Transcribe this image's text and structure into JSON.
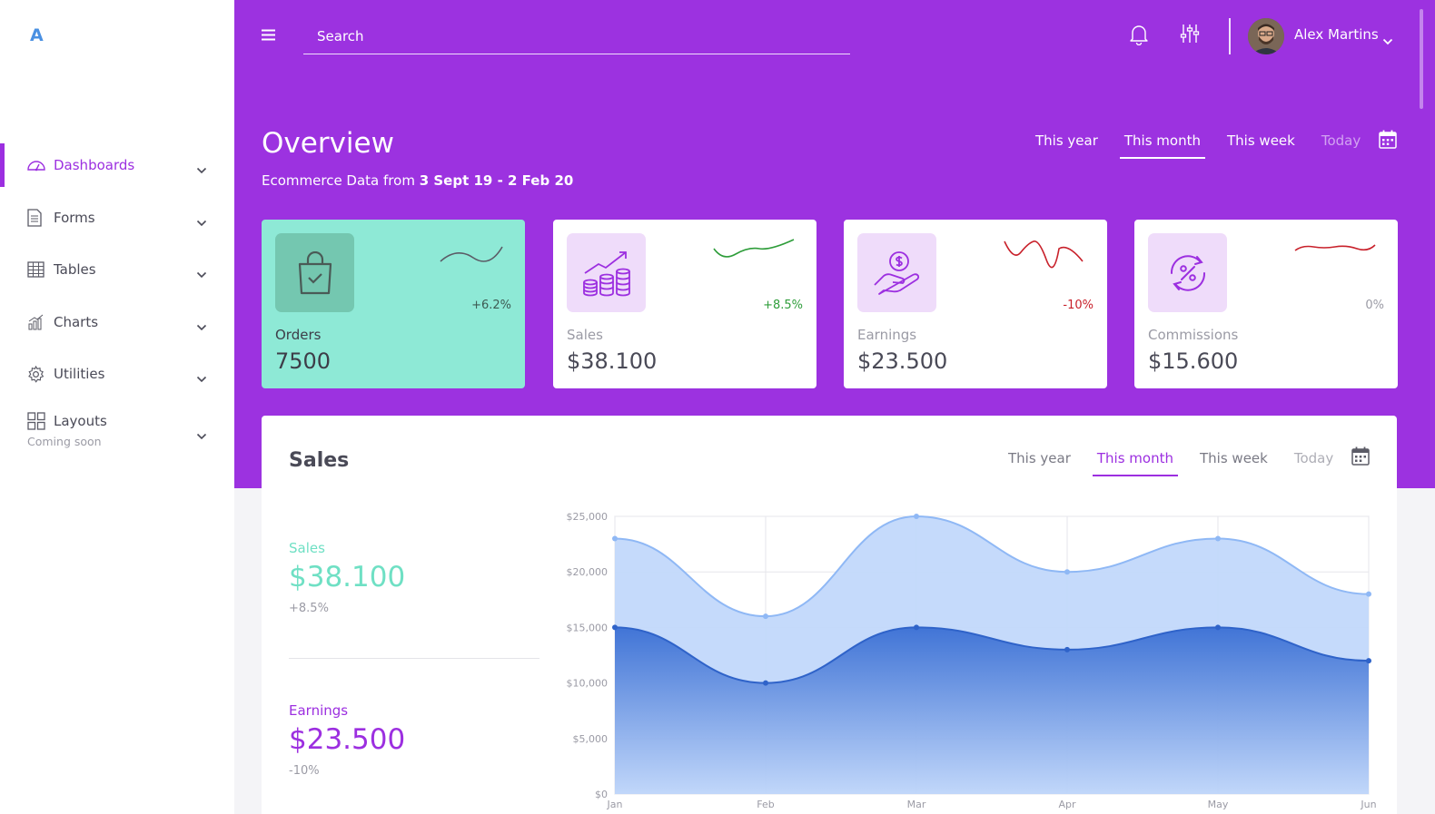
{
  "app": {
    "logo": "A"
  },
  "sidebar": {
    "items": [
      {
        "label": "Dashboards",
        "icon": "gauge-icon",
        "active": true
      },
      {
        "label": "Forms",
        "icon": "document-icon"
      },
      {
        "label": "Tables",
        "icon": "table-icon"
      },
      {
        "label": "Charts",
        "icon": "bar-chart-icon"
      },
      {
        "label": "Utilities",
        "icon": "gear-icon"
      },
      {
        "label": "Layouts",
        "icon": "grid-icon",
        "sub": "Coming soon"
      }
    ]
  },
  "topbar": {
    "search_placeholder": "Search",
    "user": {
      "name": "Alex Martins"
    }
  },
  "overview": {
    "title": "Overview",
    "subtitle_prefix": "Ecommerce Data from ",
    "subtitle_range": "3 Sept 19 - 2 Feb 20",
    "tabs": [
      {
        "label": "This year"
      },
      {
        "label": "This month",
        "active": true
      },
      {
        "label": "This week"
      },
      {
        "label": "Today"
      }
    ]
  },
  "cards": [
    {
      "label": "Orders",
      "value": "7500",
      "change": "+6.2%",
      "icon": "shopping-bag-icon",
      "change_color": "#3d5a52",
      "spark_color": "#5b5b66"
    },
    {
      "label": "Sales",
      "value": "$38.100",
      "change": "+8.5%",
      "icon": "coins-growth-icon",
      "change_color": "#2e9d3a",
      "spark_color": "#2e9d3a"
    },
    {
      "label": "Earnings",
      "value": "$23.500",
      "change": "-10%",
      "icon": "hand-coin-icon",
      "change_color": "#c8202a",
      "spark_color": "#c8202a"
    },
    {
      "label": "Commissions",
      "value": "$15.600",
      "change": "0%",
      "icon": "percent-cycle-icon",
      "change_color": "#9b9ba5",
      "spark_color": "#c8202a"
    }
  ],
  "sales_panel": {
    "title": "Sales",
    "tabs": [
      {
        "label": "This year"
      },
      {
        "label": "This month",
        "active": true
      },
      {
        "label": "This week"
      },
      {
        "label": "Today"
      }
    ],
    "kpis": [
      {
        "label": "Sales",
        "value": "$38.100",
        "change": "+8.5%",
        "color": "#6fe0c4"
      },
      {
        "label": "Earnings",
        "value": "$23.500",
        "change": "-10%",
        "color": "#9c2fe0"
      }
    ]
  },
  "colors": {
    "brand": "#9c32e0",
    "accent": "#9c2fe0",
    "orders_card": "#8ee9d6",
    "series_light": "#8fb8f5",
    "series_dark": "#2f63c9"
  },
  "chart_data": {
    "type": "area",
    "x": [
      "Jan",
      "Feb",
      "Mar",
      "Apr",
      "May",
      "Jun"
    ],
    "ylim": [
      0,
      25000
    ],
    "yticks": [
      "$25,000",
      "$20,000",
      "$15,000",
      "$10,000",
      "$5,000",
      "$0"
    ],
    "grid": true,
    "series": [
      {
        "values": [
          23000,
          16000,
          25000,
          20000,
          23000,
          18000
        ]
      },
      {
        "values": [
          15000,
          10000,
          15000,
          13000,
          15000,
          12000
        ]
      }
    ]
  }
}
